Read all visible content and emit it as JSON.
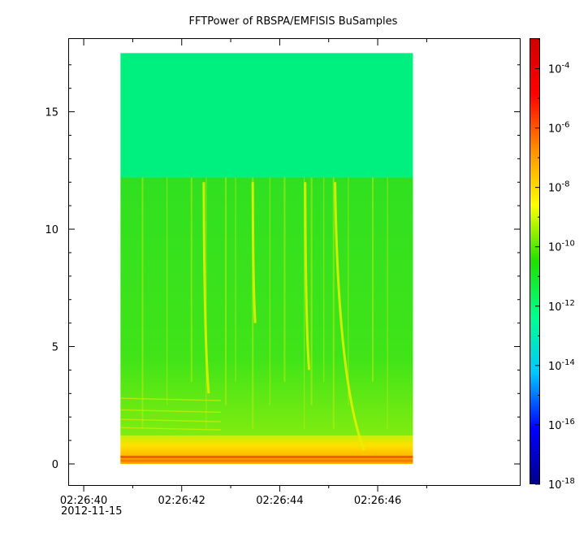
{
  "chart_data": {
    "type": "heatmap",
    "title": "FFTPower of RBSPA/EMFISIS  BuSamples",
    "xlabel": "",
    "ylabel": "",
    "x_range": [
      "02:26:39.7",
      "02:26:48.9"
    ],
    "data_time_range": [
      "02:26:40.75",
      "02:26:46.72"
    ],
    "x_ticks": [
      "02:26:40",
      "02:26:42",
      "02:26:44",
      "02:26:46"
    ],
    "x_minor_ticks": [
      "02:26:41",
      "02:26:43",
      "02:26:45",
      "02:26:47"
    ],
    "x_date_label": "2012-11-15",
    "ylim": [
      -0.9,
      18.1
    ],
    "data_y_range": [
      0,
      17.5
    ],
    "y_ticks": [
      0,
      5,
      10,
      15
    ],
    "y_tick_labels": [
      "0",
      "5",
      "10",
      "15"
    ],
    "z_scale": "log",
    "z_range": [
      1e-18,
      0.001
    ],
    "z_ticks": [
      0.0001,
      1e-06,
      1e-08,
      1e-10,
      1e-12,
      1e-14,
      1e-16,
      1e-18
    ],
    "colorbar": {
      "tick_bases": [
        "10",
        "10",
        "10",
        "10",
        "10",
        "10",
        "10",
        "10"
      ],
      "tick_exponents": [
        "-4",
        "-6",
        "-8",
        "-10",
        "-12",
        "-14",
        "-16",
        "-18"
      ],
      "colormap": [
        "#00008c",
        "#0000ff",
        "#00c8ff",
        "#00ff90",
        "#20e000",
        "#ffff00",
        "#ff9000",
        "#ff0000",
        "#d00000"
      ]
    },
    "bands": [
      {
        "y_from": 12.2,
        "y_to": 17.5,
        "level_log10": -12.8,
        "color": "#00f080"
      },
      {
        "y_from": 1.2,
        "y_to": 12.2,
        "level_log10": -10.5,
        "color": "#33e01a"
      },
      {
        "y_from": 0,
        "y_to": 1.2,
        "level_log10": -8.2,
        "color": "#ffd000"
      }
    ],
    "features": [
      {
        "type": "chorus",
        "t0": "02:26:45.13",
        "f0": 12.0,
        "t1": "02:26:45.72",
        "f1": 0.6
      },
      {
        "type": "chorus",
        "t0": "02:26:44.52",
        "f0": 12.0,
        "t1": "02:26:44.60",
        "f1": 4.0
      },
      {
        "type": "chorus",
        "t0": "02:26:43.45",
        "f0": 12.0,
        "t1": "02:26:43.50",
        "f1": 6.0
      },
      {
        "type": "chorus",
        "t0": "02:26:42.45",
        "f0": 12.0,
        "t1": "02:26:42.55",
        "f1": 3.0
      }
    ]
  }
}
